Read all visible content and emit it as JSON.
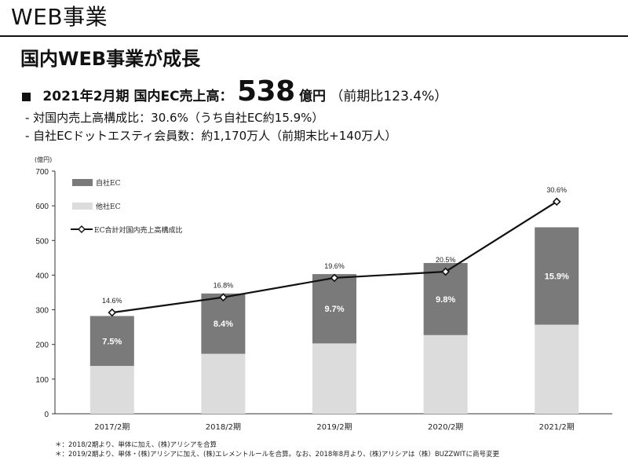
{
  "header": {
    "section_title": "WEB事業",
    "headline": "国内WEB事業が成長"
  },
  "kpi": {
    "prefix": "2021年2月期 国内EC売上高：",
    "value": "538",
    "unit": "億円",
    "growth": "（前期比123.4%）"
  },
  "bullets": [
    "- 対国内売上高構成比：30.6%（うち自社EC約15.9%）",
    "- 自社ECドットエスティ会員数：約1,170万人（前期末比+140万人）"
  ],
  "colors": {
    "own_ec": "#7a7a7a",
    "other_ec": "#dcdcdc",
    "line": "#111111"
  },
  "chart_data": {
    "type": "bar",
    "stacked": true,
    "unit_label": "(億円)",
    "categories": [
      "2017/2期",
      "2018/2期",
      "2019/2期",
      "2020/2期",
      "2021/2期"
    ],
    "ylim": [
      0,
      700
    ],
    "yticks": [
      0,
      100,
      200,
      300,
      400,
      500,
      600,
      700
    ],
    "grid": false,
    "legend_position": "top-left",
    "series": [
      {
        "name": "他社EC",
        "values": [
          138,
          173,
          203,
          227,
          257
        ]
      },
      {
        "name": "自社EC",
        "values": [
          144,
          174,
          200,
          208,
          281
        ],
        "labels": [
          "7.5%",
          "8.4%",
          "9.7%",
          "9.8%",
          "15.9%"
        ]
      }
    ],
    "line_series": {
      "name": "EC合計対国内売上高構成比",
      "values": [
        14.6,
        16.8,
        19.6,
        20.5,
        30.6
      ],
      "labels": [
        "14.6%",
        "16.8%",
        "19.6%",
        "20.5%",
        "30.6%"
      ]
    }
  },
  "footnotes": [
    "＊：2018/2期より、単体に加え、(株)アリシアを合算",
    "＊：2019/2期より、単体・(株)アリシアに加え、(株)エレメントルールを合算。なお、2018年8月より、(株)アリシアは（株）BUZZWITに商号変更"
  ]
}
